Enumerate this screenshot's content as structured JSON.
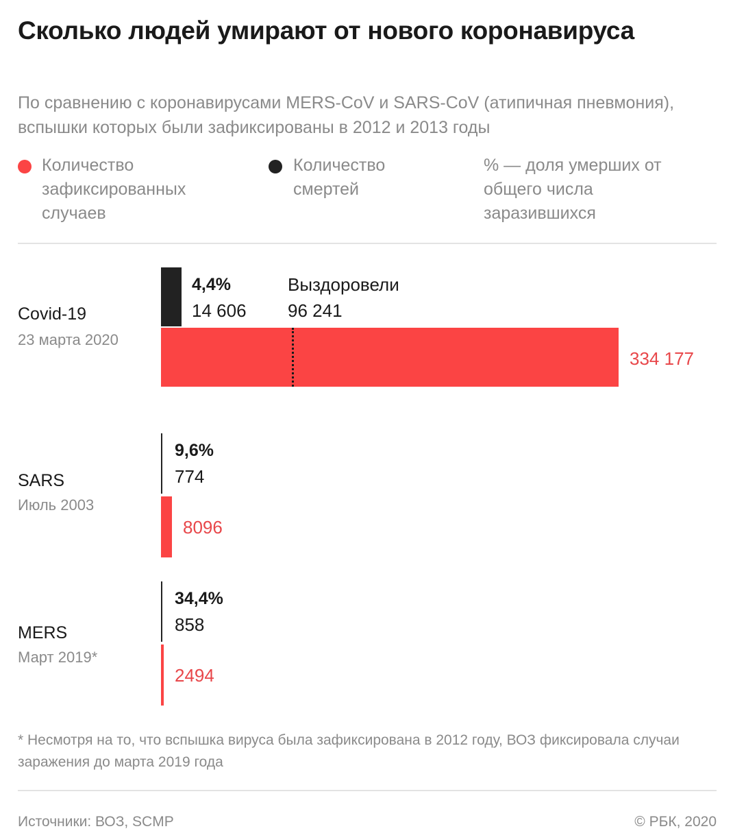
{
  "title": "Сколько людей умирают от нового коронавируса",
  "subtitle": "По сравнению с коронавирусами MERS-CoV и SARS-CoV (атипичная пневмония), вспышки которых были зафиксированы в 2012 и 2013 годы",
  "legend": {
    "cases": "Количество зафиксированных случаев",
    "deaths": "Количество смертей",
    "percent": "% — доля умерших от общего числа заразившихся"
  },
  "colors": {
    "cases": "#fb4444",
    "deaths": "#222222",
    "text_cases": "#e8474a"
  },
  "chart_data": {
    "type": "bar",
    "categories": [
      "Covid-19",
      "SARS",
      "MERS"
    ],
    "dates": [
      "23 марта 2020",
      "Июль 2003",
      "Март 2019*"
    ],
    "series": [
      {
        "name": "Количество зафиксированных случаев",
        "values": [
          334177,
          8096,
          2494
        ]
      },
      {
        "name": "Количество смертей",
        "values": [
          14606,
          774,
          858
        ]
      }
    ],
    "values_text": {
      "cases": [
        "334 177",
        "8096",
        "2494"
      ],
      "deaths": [
        "14 606",
        "774",
        "858"
      ]
    },
    "death_share": [
      "4,4%",
      "9,6%",
      "34,4%"
    ],
    "recovered": {
      "label": "Выздоровели",
      "value": 96241,
      "value_text": "96 241"
    }
  },
  "footnote": "* Несмотря на то, что вспышка вируса была зафиксирована в 2012 году, ВОЗ фиксировала случаи заражения до марта 2019 года",
  "sources": "Источники: ВОЗ, SCMP",
  "copyright": "© РБК, 2020"
}
